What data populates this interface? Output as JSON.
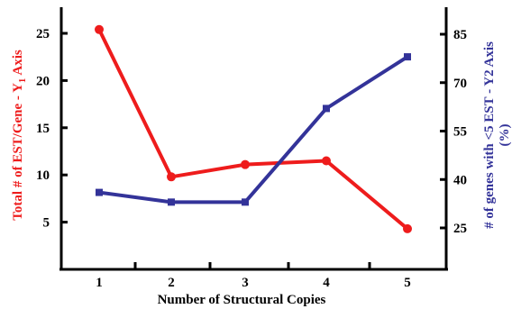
{
  "chart_data": {
    "type": "line",
    "categories": [
      "1",
      "2",
      "3",
      "4",
      "5"
    ],
    "x": [
      1,
      2,
      3,
      4,
      5
    ],
    "xlabel": "Number of Structural Copies",
    "y1": {
      "label_main": "Total # of EST/Gene - Y",
      "label_sub": "1",
      "label_tail": " Axis",
      "ticks": [
        "5",
        "10",
        "15",
        "20",
        "25"
      ],
      "tick_values": [
        5,
        10,
        15,
        20,
        25
      ],
      "ylim": [
        0,
        27
      ],
      "color": "#ee1c1c"
    },
    "y2": {
      "label_line1": "# of genes with <5 EST  - Y2 Axis",
      "label_line2": "(%)",
      "ticks": [
        "25",
        "40",
        "55",
        "70",
        "85"
      ],
      "tick_values": [
        25,
        40,
        55,
        70,
        85
      ],
      "ylim": [
        5,
        92
      ],
      "color": "#333399"
    },
    "series": [
      {
        "axis": "y1",
        "color": "#ee1c1c",
        "values": [
          25.4,
          9.8,
          11.1,
          11.5,
          4.3
        ]
      },
      {
        "axis": "y2",
        "color": "#333399",
        "values": [
          36,
          33,
          33,
          62,
          78
        ]
      }
    ]
  }
}
